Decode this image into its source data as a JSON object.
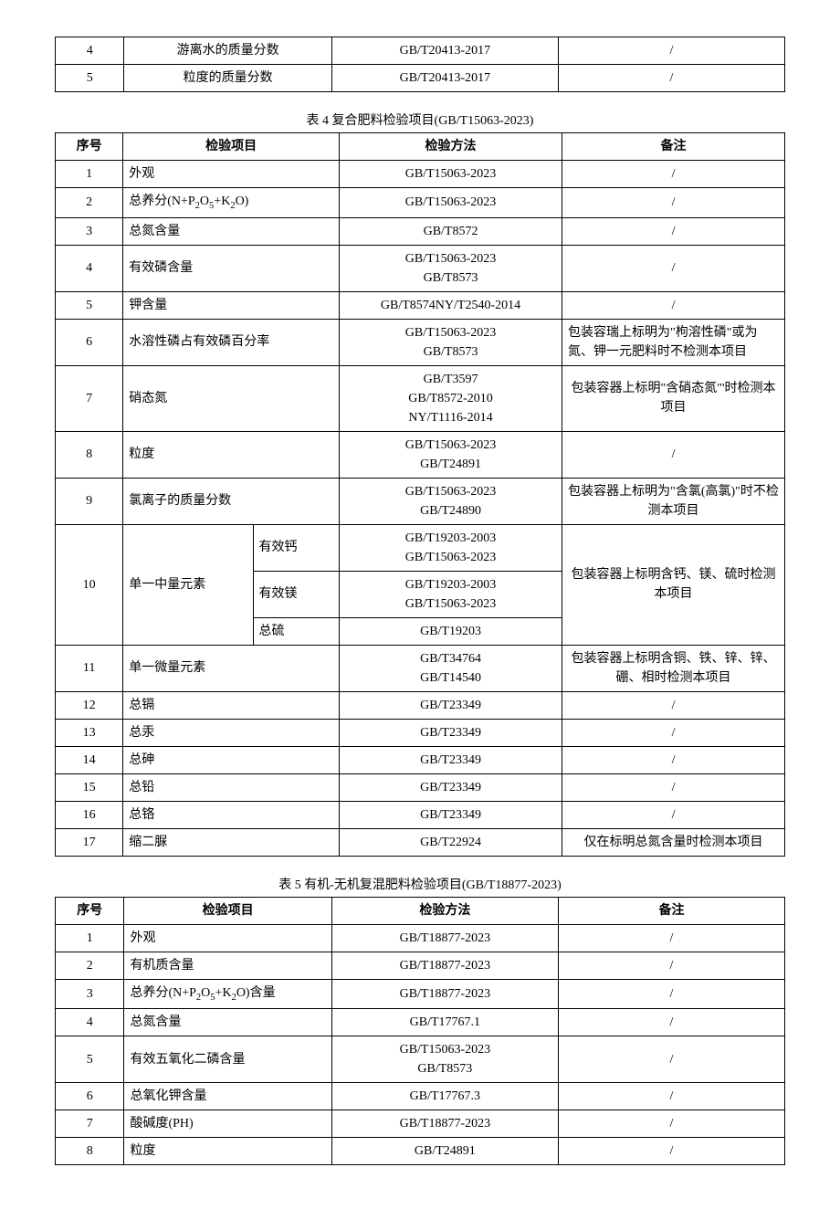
{
  "topTable": {
    "rows": [
      {
        "seq": "4",
        "item": "游离水的质量分数",
        "method": "GB/T20413-2017",
        "note": "/"
      },
      {
        "seq": "5",
        "item": "粒度的质量分数",
        "method": "GB/T20413-2017",
        "note": "/"
      }
    ]
  },
  "table4": {
    "caption": "表 4 复合肥料检验项目(GB/T15063-2023)",
    "headers": {
      "seq": "序号",
      "item": "检验项目",
      "method": "检验方法",
      "note": "备注"
    },
    "rows": [
      {
        "seq": "1",
        "item": "外观",
        "method": "GB/T15063-2023",
        "note": "/"
      },
      {
        "seq": "2",
        "item_html": "总养分(N+P<sub>2</sub>O<sub>5</sub>+K<sub>2</sub>O)",
        "method": "GB/T15063-2023",
        "note": "/"
      },
      {
        "seq": "3",
        "item": "总氮含量",
        "method": "GB/T8572",
        "note": "/"
      },
      {
        "seq": "4",
        "item": "有效磷含量",
        "method": "GB/T15063-2023\nGB/T8573",
        "note": "/"
      },
      {
        "seq": "5",
        "item": "钾含量",
        "method": "GB/T8574NY/T2540-2014",
        "note": "/"
      },
      {
        "seq": "6",
        "item": "水溶性磷占有效磷百分率",
        "method": "GB/T15063-2023\nGB/T8573",
        "note": "包装容瑞上标明为\"枸溶性磷\"或为氮、钾一元肥料时不检测本项目",
        "note_align": "left"
      },
      {
        "seq": "7",
        "item": "硝态氮",
        "method": "GB/T3597\nGB/T8572-2010\nNY/T1116-2014",
        "note": "包装容器上标明\"含硝态氮\"'时检测本项目"
      },
      {
        "seq": "8",
        "item": "粒度",
        "method": "GB/T15063-2023\nGB/T24891",
        "note": "/"
      },
      {
        "seq": "9",
        "item": "氯离子的质量分数",
        "method": "GB/T15063-2023\nGB/T24890",
        "note": "包装容器上标明为\"含氯(高氯)\"时不检测本项目"
      }
    ],
    "row10": {
      "seq": "10",
      "item": "单一中量元素",
      "subitems": [
        {
          "label": "有效钙",
          "method": "GB/T19203-2003\nGB/T15063-2023"
        },
        {
          "label": "有效镁",
          "method": "GB/T19203-2003\nGB/T15063-2023"
        },
        {
          "label": "总硫",
          "method": "GB/T19203"
        }
      ],
      "note": "包装容器上标明含钙、镁、硫时检测本项目"
    },
    "rowsTail": [
      {
        "seq": "11",
        "item": "单一微量元素",
        "method": "GB/T34764\nGB/T14540",
        "note": "包装容器上标明含铜、铁、锌、锌、硼、相时检测本项目"
      },
      {
        "seq": "12",
        "item": "总镉",
        "method": "GB/T23349",
        "note": "/"
      },
      {
        "seq": "13",
        "item": "总汞",
        "method": "GB/T23349",
        "note": "/"
      },
      {
        "seq": "14",
        "item": "总砷",
        "method": "GB/T23349",
        "note": "/"
      },
      {
        "seq": "15",
        "item": "总铅",
        "method": "GB/T23349",
        "note": "/"
      },
      {
        "seq": "16",
        "item": "总铬",
        "method": "GB/T23349",
        "note": "/"
      },
      {
        "seq": "17",
        "item": "缩二脲",
        "method": "GB/T22924",
        "note": "仅在标明总氮含量时检测本项目"
      }
    ]
  },
  "table5": {
    "caption": "表 5 有机-无机复混肥料检验项目(GB/T18877-2023)",
    "headers": {
      "seq": "序号",
      "item": "检验项目",
      "method": "检验方法",
      "note": "备注"
    },
    "rows": [
      {
        "seq": "1",
        "item": "外观",
        "method": "GB/T18877-2023",
        "note": "/"
      },
      {
        "seq": "2",
        "item": "有机质含量",
        "method": "GB/T18877-2023",
        "note": "/"
      },
      {
        "seq": "3",
        "item_html": "总养分(N+P<sub>2</sub>O<sub>5</sub>+K<sub>2</sub>O)含量",
        "method": "GB/T18877-2023",
        "note": "/"
      },
      {
        "seq": "4",
        "item": "总氮含量",
        "method": "GB/T17767.1",
        "note": "/"
      },
      {
        "seq": "5",
        "item": "有效五氧化二磷含量",
        "method": "GB/T15063-2023\nGB/T8573",
        "note": "/"
      },
      {
        "seq": "6",
        "item": "总氧化钾含量",
        "method": "GB/T17767.3",
        "note": "/"
      },
      {
        "seq": "7",
        "item": "酸碱度(PH)",
        "method": "GB/T18877-2023",
        "note": "/"
      },
      {
        "seq": "8",
        "item": "粒度",
        "method": "GB/T24891",
        "note": "/"
      }
    ]
  },
  "colWidths": {
    "seq": "70px",
    "item": "220px",
    "method": "240px",
    "note": "240px"
  }
}
